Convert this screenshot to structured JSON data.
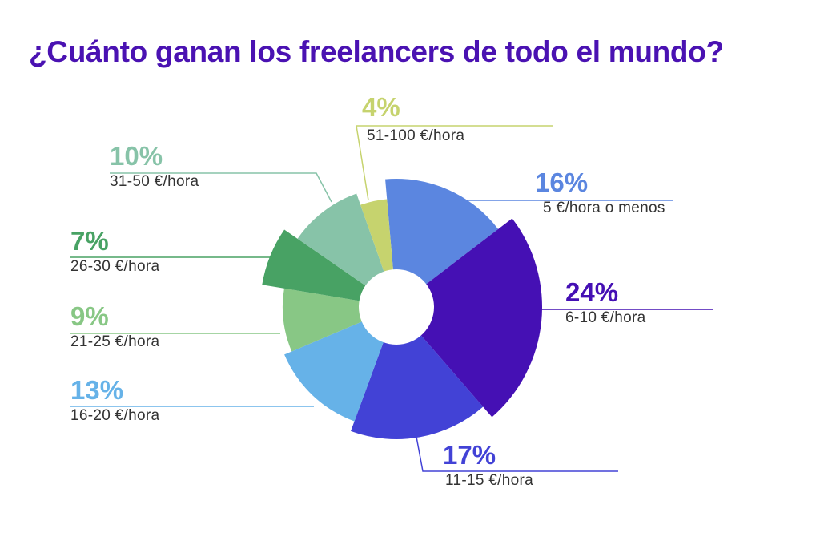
{
  "chart_data": {
    "type": "pie",
    "variant": "polar-area (radius varies per slice, donut hole)",
    "title": "¿Cuánto ganan los freelancers de todo el mundo?",
    "slices": [
      {
        "label": "5 €/hora o menos",
        "value": 16,
        "display": "16%",
        "color": "#5b86e0"
      },
      {
        "label": "6-10 €/hora",
        "value": 24,
        "display": "24%",
        "color": "#4510b4"
      },
      {
        "label": "11-15 €/hora",
        "value": 17,
        "display": "17%",
        "color": "#4242d6"
      },
      {
        "label": "16-20 €/hora",
        "value": 13,
        "display": "13%",
        "color": "#66b2e8"
      },
      {
        "label": "21-25 €/hora",
        "value": 9,
        "display": "9%",
        "color": "#88c785"
      },
      {
        "label": "26-30 €/hora",
        "value": 7,
        "display": "7%",
        "color": "#48a264"
      },
      {
        "label": "31-50 €/hora",
        "value": 10,
        "display": "10%",
        "color": "#87c3a8"
      },
      {
        "label": "51-100 €/hora",
        "value": 4,
        "display": "4%",
        "color": "#c6d36e"
      }
    ],
    "title_color": "#4a12b2"
  }
}
